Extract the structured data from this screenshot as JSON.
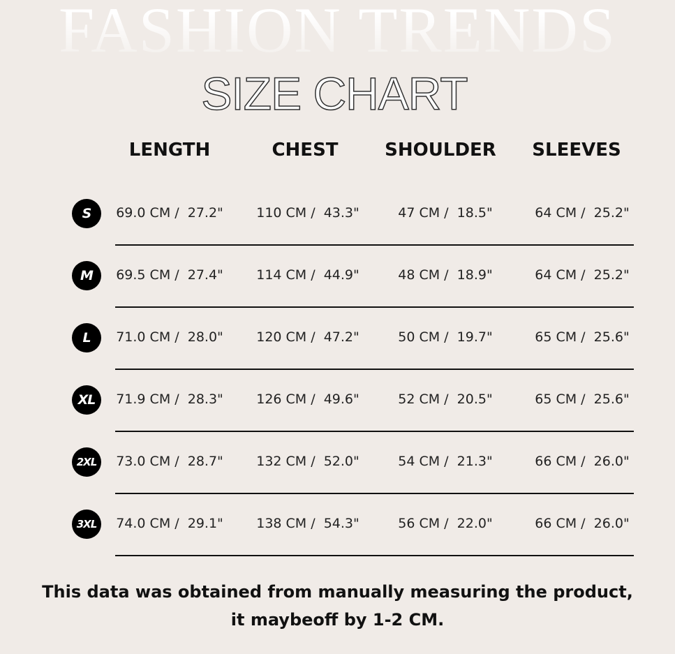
{
  "background_title": "FASHION TRENDS",
  "title": "SIZE CHART",
  "colors": {
    "background": "#f0ebe7",
    "badge": "#000000",
    "text": "#111111"
  },
  "columns": [
    "LENGTH",
    "CHEST",
    "SHOULDER",
    "SLEEVES"
  ],
  "rows": [
    {
      "size": "S",
      "values": [
        "69.0 CM /  27.2\"",
        "110 CM /  43.3\"",
        "47 CM /  18.5\"",
        "64 CM /  25.2\""
      ]
    },
    {
      "size": "M",
      "values": [
        "69.5 CM /  27.4\"",
        "114 CM /  44.9\"",
        "48 CM /  18.9\"",
        "64 CM /  25.2\""
      ]
    },
    {
      "size": "L",
      "values": [
        "71.0 CM /  28.0\"",
        "120 CM /  47.2\"",
        "50 CM /  19.7\"",
        "65 CM /  25.6\""
      ]
    },
    {
      "size": "XL",
      "values": [
        "71.9 CM /  28.3\"",
        "126 CM /  49.6\"",
        "52 CM /  20.5\"",
        "65 CM /  25.6\""
      ]
    },
    {
      "size": "2XL",
      "values": [
        "73.0 CM /  28.7\"",
        "132 CM /  52.0\"",
        "54 CM /  21.3\"",
        "66 CM /  26.0\""
      ]
    },
    {
      "size": "3XL",
      "values": [
        "74.0 CM /  29.1\"",
        "138 CM /  54.3\"",
        "56 CM /  22.0\"",
        "66 CM /  26.0\""
      ]
    }
  ],
  "note": "This data was obtained from manually measuring the product, it maybeoff by 1-2 CM."
}
